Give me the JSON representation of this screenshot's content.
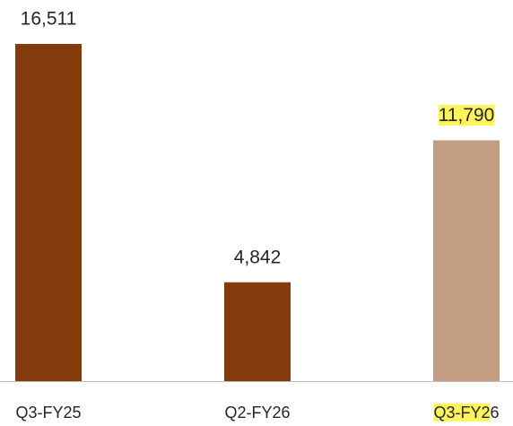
{
  "chart_data": {
    "type": "bar",
    "categories": [
      "Q3-FY25",
      "Q2-FY26",
      "Q3-FY26"
    ],
    "values": [
      16511,
      4842,
      11790
    ],
    "value_labels": [
      "16,511",
      "4,842",
      "11,790"
    ],
    "colors": [
      "#843c0c",
      "#843c0c",
      "#c39d82"
    ],
    "highlight": {
      "index": 2,
      "color": "#fff35c"
    }
  }
}
